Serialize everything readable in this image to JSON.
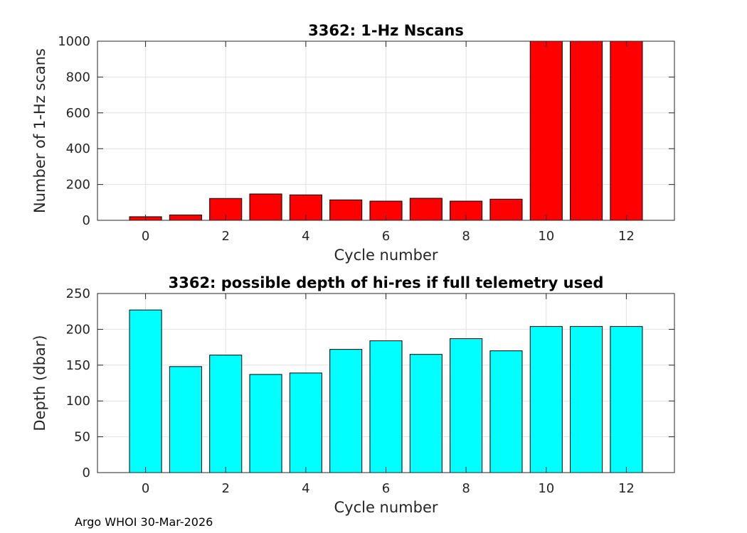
{
  "chart_data": [
    {
      "type": "bar",
      "title": "3362: 1-Hz Nscans",
      "xlabel": "Cycle number",
      "ylabel": "Number of 1-Hz scans",
      "x": [
        0,
        1,
        2,
        3,
        4,
        5,
        6,
        7,
        8,
        9,
        10,
        11,
        12
      ],
      "values": [
        20,
        30,
        122,
        147,
        142,
        114,
        107,
        123,
        107,
        118,
        1000,
        1000,
        1000
      ],
      "xlim": [
        -1.2,
        13.2
      ],
      "ylim": [
        0,
        1000
      ],
      "xticks": [
        "0",
        "2",
        "4",
        "6",
        "8",
        "10",
        "12"
      ],
      "yticks": [
        "0",
        "200",
        "400",
        "600",
        "800",
        "1000"
      ],
      "grid": true,
      "bar_color": "#ff0000"
    },
    {
      "type": "bar",
      "title": "3362: possible depth of hi-res if full telemetry used",
      "xlabel": "Cycle number",
      "ylabel": "Depth (dbar)",
      "x": [
        0,
        1,
        2,
        3,
        4,
        5,
        6,
        7,
        8,
        9,
        10,
        11,
        12
      ],
      "values": [
        227,
        148,
        164,
        137,
        139,
        172,
        184,
        165,
        187,
        170,
        204,
        204,
        204
      ],
      "xlim": [
        -1.2,
        13.2
      ],
      "ylim": [
        0,
        250
      ],
      "xticks": [
        "0",
        "2",
        "4",
        "6",
        "8",
        "10",
        "12"
      ],
      "yticks": [
        "0",
        "50",
        "100",
        "150",
        "200",
        "250"
      ],
      "grid": true,
      "bar_color": "#00ffff"
    }
  ],
  "footer": "Argo WHOI 30-Mar-2026"
}
